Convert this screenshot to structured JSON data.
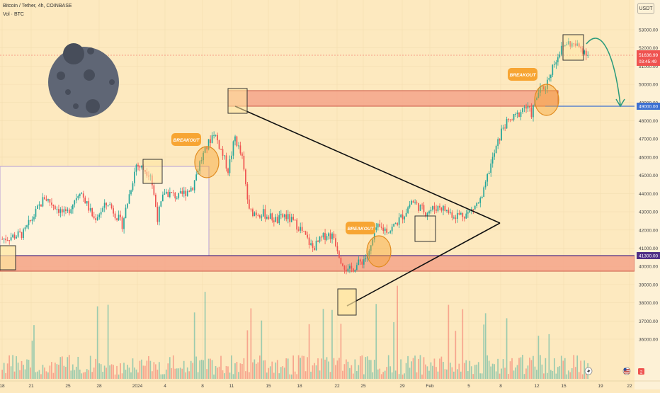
{
  "header": {
    "title": "Bitcoin / Tether, 4h, COINBASE",
    "volume_label": "Vol · BTC",
    "currency_button": "USDT"
  },
  "colors": {
    "up": "#26a69a",
    "down": "#ef5350",
    "zone_fill": "#f4a58a",
    "range_fill": "#fff3dc",
    "annotation": "#f7a533",
    "support_line": "#4f2f86",
    "target_line": "#3b6fd1",
    "projection": "#2a9a7a",
    "moon": "#5f6675"
  },
  "annotations": {
    "breakout_1": "BREAKOUT",
    "breakout_2": "BREAKOUT",
    "breakout_3": "BREAKOUT"
  },
  "badges": {
    "current_price": "51636.99",
    "countdown": "03:45:49",
    "target": "49000.00",
    "support": "41300.00"
  },
  "icons": {
    "moon": "moon-illustration",
    "lightning": "lightning-icon",
    "flag": "us-flag-icon",
    "calendar_badge": "calendar-badge-icon"
  },
  "chart_data": {
    "type": "candlestick",
    "symbol": "Bitcoin / Tether, 4h, COINBASE",
    "y_axis": {
      "ticks": [
        36000,
        37000,
        38000,
        39000,
        40000,
        41000,
        42000,
        43000,
        44000,
        45000,
        46000,
        47000,
        48000,
        49000,
        50000,
        51000,
        52000,
        53000
      ],
      "labels": [
        "36000.00",
        "37000.00",
        "38000.00",
        "39000.00",
        "40000.00",
        "41000.00",
        "42000.00",
        "43000.00",
        "44000.00",
        "45000.00",
        "46000.00",
        "47000.00",
        "48000.00",
        "49000.00",
        "50000.00",
        "51000.00",
        "52000.00",
        "53000.00"
      ],
      "position": "right"
    },
    "x_axis": {
      "labels": [
        "18",
        "21",
        "25",
        "28",
        "2024",
        "4",
        "8",
        "11",
        "15",
        "18",
        "22",
        "25",
        "29",
        "Feb",
        "5",
        "8",
        "12",
        "15",
        "19",
        "22"
      ]
    },
    "levels": {
      "current_price": 51636.99,
      "target": 49000,
      "support": 41300
    },
    "price_path": [
      [
        0,
        41500
      ],
      [
        3,
        41800
      ],
      [
        6,
        43800
      ],
      [
        9,
        42800
      ],
      [
        11,
        44200
      ],
      [
        13,
        42600
      ],
      [
        15,
        43500
      ],
      [
        17,
        42300
      ],
      [
        19,
        45600
      ],
      [
        21,
        45100
      ],
      [
        22,
        42700
      ],
      [
        23,
        44100
      ],
      [
        25,
        43800
      ],
      [
        27,
        44400
      ],
      [
        28,
        45700
      ],
      [
        30,
        47400
      ],
      [
        31,
        46400
      ],
      [
        32,
        45300
      ],
      [
        33,
        47100
      ],
      [
        34,
        45900
      ],
      [
        35,
        43000
      ],
      [
        37,
        42900
      ],
      [
        39,
        42500
      ],
      [
        40,
        42800
      ],
      [
        42,
        42200
      ],
      [
        43,
        41600
      ],
      [
        44,
        41000
      ],
      [
        46,
        41800
      ],
      [
        47,
        41600
      ],
      [
        48,
        40400
      ],
      [
        49,
        39700
      ],
      [
        51,
        40300
      ],
      [
        52,
        40700
      ],
      [
        53,
        42100
      ],
      [
        55,
        42000
      ],
      [
        57,
        42900
      ],
      [
        58,
        43600
      ],
      [
        60,
        43000
      ],
      [
        62,
        43300
      ],
      [
        64,
        42800
      ],
      [
        66,
        42900
      ],
      [
        68,
        43700
      ],
      [
        69,
        45300
      ],
      [
        71,
        47700
      ],
      [
        73,
        48300
      ],
      [
        74,
        48800
      ],
      [
        75,
        48400
      ],
      [
        76,
        49600
      ],
      [
        77,
        49900
      ],
      [
        78,
        51000
      ],
      [
        79,
        51800
      ],
      [
        80,
        52300
      ],
      [
        82,
        52000
      ],
      [
        83,
        51700
      ]
    ]
  }
}
